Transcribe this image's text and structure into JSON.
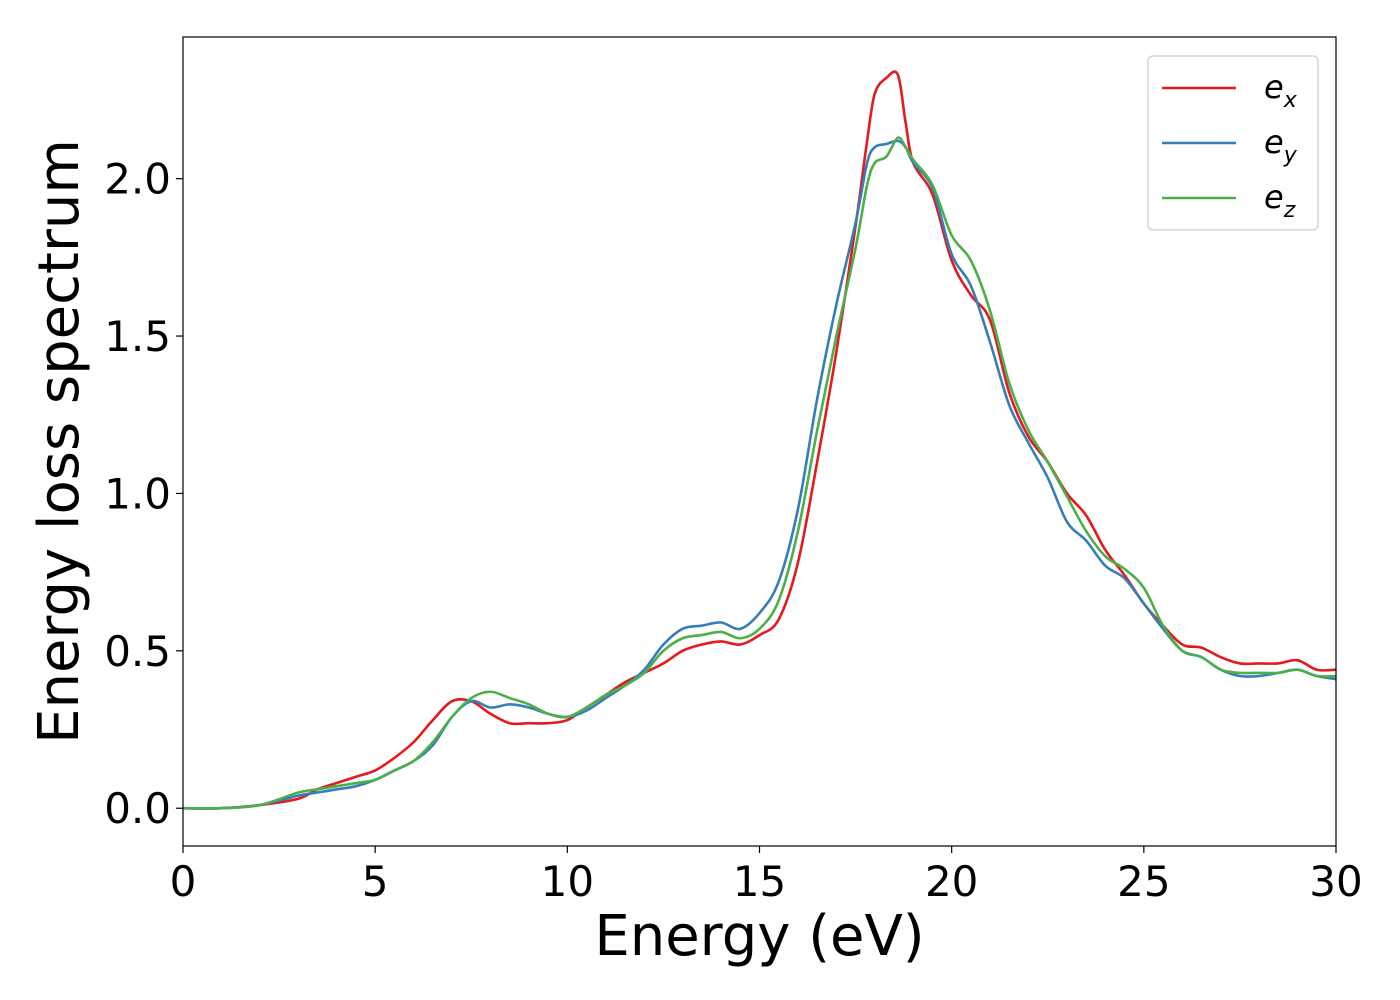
{
  "chart_data": {
    "type": "line",
    "title": "",
    "xlabel": "Energy (eV)",
    "ylabel": "Energy loss spectrum",
    "xlim": [
      0,
      30
    ],
    "ylim": [
      -0.12,
      2.45
    ],
    "xticks": [
      0,
      5,
      10,
      15,
      20,
      25,
      30
    ],
    "xtick_labels": [
      "0",
      "5",
      "10",
      "15",
      "20",
      "25",
      "30"
    ],
    "yticks": [
      0.0,
      0.5,
      1.0,
      1.5,
      2.0
    ],
    "ytick_labels": [
      "0.0",
      "0.5",
      "1.0",
      "1.5",
      "2.0"
    ],
    "grid": false,
    "legend_position": "top-right",
    "series": [
      {
        "name": "e",
        "subscript": "x",
        "color": "#e41a1c",
        "x": [
          0,
          1,
          2,
          3,
          3.5,
          4,
          4.5,
          5,
          5.5,
          6,
          6.5,
          7,
          7.5,
          8,
          8.5,
          9,
          9.5,
          10,
          10.5,
          11,
          11.5,
          12,
          12.5,
          13,
          13.5,
          14,
          14.5,
          15,
          15.5,
          16,
          16.5,
          17,
          17.5,
          17.8,
          18,
          18.3,
          18.6,
          18.8,
          19,
          19.5,
          20,
          20.5,
          21,
          21.5,
          22,
          22.5,
          23,
          23.5,
          24,
          24.5,
          25,
          25.5,
          26,
          26.5,
          27,
          27.5,
          28,
          28.5,
          29,
          29.5,
          30
        ],
        "y": [
          0.0,
          0.0,
          0.01,
          0.03,
          0.06,
          0.08,
          0.1,
          0.12,
          0.16,
          0.21,
          0.28,
          0.34,
          0.34,
          0.3,
          0.27,
          0.27,
          0.27,
          0.28,
          0.32,
          0.36,
          0.4,
          0.43,
          0.46,
          0.5,
          0.52,
          0.53,
          0.52,
          0.55,
          0.6,
          0.78,
          1.1,
          1.45,
          1.85,
          2.12,
          2.27,
          2.32,
          2.33,
          2.18,
          2.05,
          1.95,
          1.74,
          1.63,
          1.55,
          1.32,
          1.18,
          1.1,
          1.0,
          0.93,
          0.82,
          0.74,
          0.65,
          0.58,
          0.52,
          0.51,
          0.48,
          0.46,
          0.46,
          0.46,
          0.47,
          0.44,
          0.44
        ]
      },
      {
        "name": "e",
        "subscript": "y",
        "color": "#377eb8",
        "x": [
          0,
          1,
          2,
          3,
          3.5,
          4,
          4.5,
          5,
          5.5,
          6,
          6.5,
          7,
          7.5,
          8,
          8.5,
          9,
          9.5,
          10,
          10.5,
          11,
          11.5,
          12,
          12.5,
          13,
          13.5,
          14,
          14.5,
          15,
          15.5,
          16,
          16.5,
          17,
          17.5,
          17.8,
          18,
          18.3,
          18.6,
          18.8,
          19,
          19.5,
          20,
          20.5,
          21,
          21.5,
          22,
          22.5,
          23,
          23.5,
          24,
          24.5,
          25,
          25.5,
          26,
          26.5,
          27,
          27.5,
          28,
          28.5,
          29,
          29.5,
          30
        ],
        "y": [
          0.0,
          0.0,
          0.01,
          0.04,
          0.05,
          0.06,
          0.07,
          0.09,
          0.12,
          0.15,
          0.2,
          0.29,
          0.34,
          0.32,
          0.33,
          0.32,
          0.3,
          0.29,
          0.31,
          0.35,
          0.39,
          0.44,
          0.52,
          0.57,
          0.58,
          0.59,
          0.57,
          0.62,
          0.72,
          0.95,
          1.3,
          1.6,
          1.86,
          2.05,
          2.1,
          2.11,
          2.12,
          2.1,
          2.05,
          1.97,
          1.76,
          1.66,
          1.48,
          1.28,
          1.16,
          1.05,
          0.91,
          0.85,
          0.77,
          0.73,
          0.65,
          0.57,
          0.5,
          0.48,
          0.44,
          0.42,
          0.42,
          0.43,
          0.44,
          0.42,
          0.41
        ]
      },
      {
        "name": "e",
        "subscript": "z",
        "color": "#4daf4a",
        "x": [
          0,
          1,
          2,
          3,
          3.5,
          4,
          4.5,
          5,
          5.5,
          6,
          6.5,
          7,
          7.5,
          8,
          8.5,
          9,
          9.5,
          10,
          10.5,
          11,
          11.5,
          12,
          12.5,
          13,
          13.5,
          14,
          14.5,
          15,
          15.5,
          16,
          16.5,
          17,
          17.5,
          17.8,
          18,
          18.3,
          18.6,
          18.8,
          19,
          19.5,
          20,
          20.5,
          21,
          21.5,
          22,
          22.5,
          23,
          23.5,
          24,
          24.5,
          25,
          25.5,
          26,
          26.5,
          27,
          27.5,
          28,
          28.5,
          29,
          29.5,
          30
        ],
        "y": [
          0.0,
          0.0,
          0.01,
          0.05,
          0.06,
          0.07,
          0.08,
          0.09,
          0.12,
          0.15,
          0.21,
          0.29,
          0.35,
          0.37,
          0.35,
          0.33,
          0.3,
          0.29,
          0.32,
          0.36,
          0.39,
          0.43,
          0.5,
          0.54,
          0.55,
          0.56,
          0.54,
          0.57,
          0.66,
          0.88,
          1.2,
          1.5,
          1.78,
          1.98,
          2.05,
          2.07,
          2.13,
          2.1,
          2.06,
          1.98,
          1.82,
          1.74,
          1.58,
          1.35,
          1.2,
          1.1,
          0.99,
          0.88,
          0.8,
          0.76,
          0.7,
          0.58,
          0.5,
          0.48,
          0.44,
          0.43,
          0.43,
          0.43,
          0.44,
          0.42,
          0.42
        ]
      }
    ]
  }
}
